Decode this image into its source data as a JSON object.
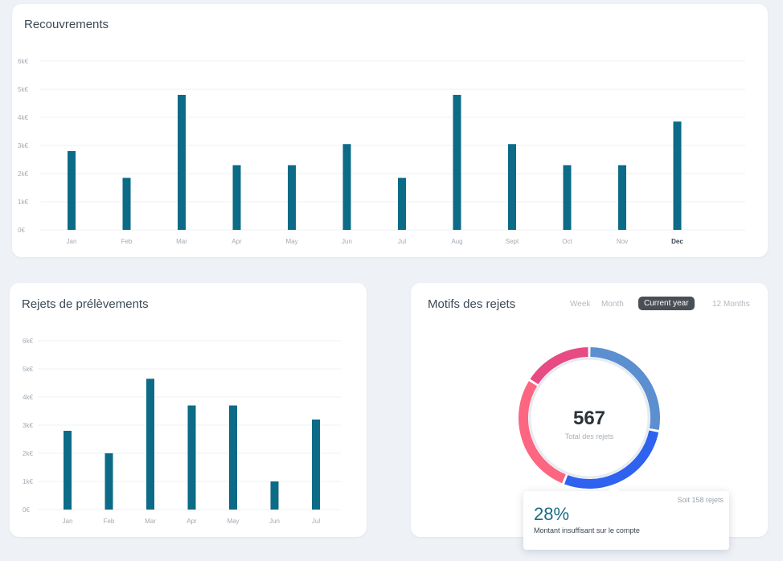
{
  "recouvrements": {
    "title": "Recouvrements",
    "chart_data": {
      "type": "bar",
      "title": "Recouvrements",
      "categories": [
        "Jan",
        "Feb",
        "Mar",
        "Apr",
        "May",
        "Jun",
        "Jul",
        "Aug",
        "Sept",
        "Oct",
        "Nov",
        "Dec"
      ],
      "values": [
        2800,
        1850,
        4800,
        2300,
        2300,
        3050,
        1850,
        4800,
        3050,
        2300,
        2300,
        3850
      ],
      "ylim": [
        0,
        6000
      ],
      "yticks": [
        "0€",
        "1k€",
        "2k€",
        "3k€",
        "4k€",
        "5k€",
        "6k€"
      ],
      "highlighted_category": "Dec",
      "bar_color": "#0c6b87",
      "grid": true
    }
  },
  "rejets": {
    "title": "Rejets de prélèvements",
    "chart_data": {
      "type": "bar",
      "title": "Rejets de prélèvements",
      "categories": [
        "Jan",
        "Feb",
        "Mar",
        "Apr",
        "May",
        "Jun",
        "Jul"
      ],
      "values": [
        2800,
        2000,
        4650,
        3700,
        3700,
        1000,
        3200
      ],
      "ylim": [
        0,
        6000
      ],
      "yticks": [
        "0€",
        "1k€",
        "2k€",
        "3k€",
        "4k€",
        "5k€",
        "6k€"
      ],
      "bar_color": "#0c6b87",
      "grid": true
    }
  },
  "motifs": {
    "title": "Motifs des rejets",
    "tabs": [
      {
        "label": "Week",
        "active": false
      },
      {
        "label": "Month",
        "active": false
      },
      {
        "label": "Current year",
        "active": true
      },
      {
        "label": "12 Months",
        "active": false
      }
    ],
    "total_value": "567",
    "total_label": "Total des rejets",
    "chart_data": {
      "type": "pie",
      "variant": "donut",
      "total": 567,
      "segments": [
        {
          "fraction": 0.28,
          "color": "#5b8fd0"
        },
        {
          "fraction": 0.28,
          "color": "#2e62ef"
        },
        {
          "fraction": 0.28,
          "color": "#fd6680"
        },
        {
          "fraction": 0.16,
          "color": "#e84a84"
        }
      ]
    },
    "tooltip": {
      "count": "Soit 158 rejets",
      "percent": "28%",
      "label": "Montant insuffisant sur le compte"
    }
  },
  "colors": {
    "background": "#eef2f6",
    "bar": "#0c6b87",
    "tooltip_percent": "#1d6b86"
  }
}
